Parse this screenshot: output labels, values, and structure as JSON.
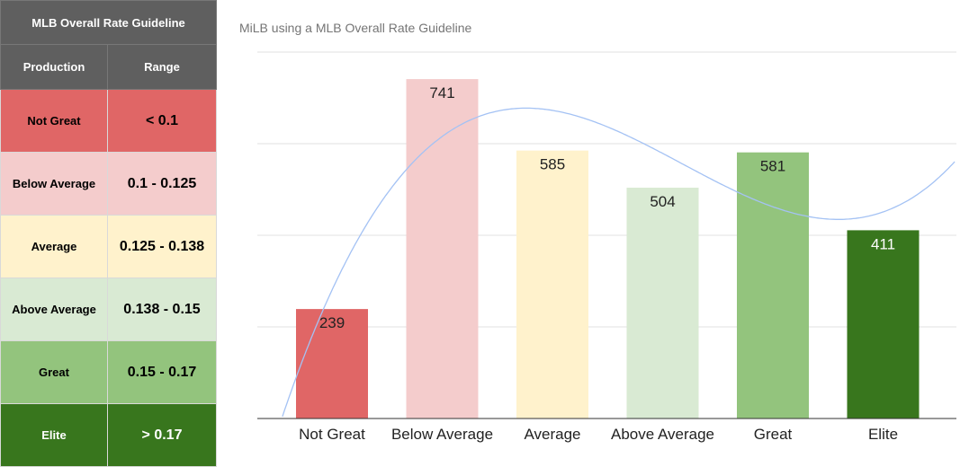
{
  "guide": {
    "title": "MLB Overall Rate Guideline",
    "col_production": "Production",
    "col_range": "Range",
    "rows": [
      {
        "production": "Not Great",
        "range": "< 0.1",
        "bg": "#e06666",
        "fg": "#000000"
      },
      {
        "production": "Below Average",
        "range": "0.1 - 0.125",
        "bg": "#f4cccc",
        "fg": "#000000"
      },
      {
        "production": "Average",
        "range": "0.125 - 0.138",
        "bg": "#fff2cc",
        "fg": "#000000"
      },
      {
        "production": "Above Average",
        "range": "0.138 - 0.15",
        "bg": "#d9ead3",
        "fg": "#000000"
      },
      {
        "production": "Great",
        "range": "0.15 - 0.17",
        "bg": "#93c47d",
        "fg": "#000000"
      },
      {
        "production": "Elite",
        "range": "> 0.17",
        "bg": "#38761d",
        "fg": "#ffffff"
      }
    ]
  },
  "chart_data": {
    "type": "bar",
    "title": "MiLB using a MLB Overall Rate Guideline",
    "categories": [
      "Not Great",
      "Below Average",
      "Average",
      "Above Average",
      "Great",
      "Elite"
    ],
    "values": [
      239,
      741,
      585,
      504,
      581,
      411
    ],
    "colors": [
      "#e06666",
      "#f4cccc",
      "#fff2cc",
      "#d9ead3",
      "#93c47d",
      "#38761d"
    ],
    "label_colors": [
      "#222222",
      "#222222",
      "#222222",
      "#222222",
      "#222222",
      "#ffffff"
    ],
    "ylim": [
      0,
      800
    ],
    "grid": true,
    "trendline": {
      "type": "polynomial",
      "color": "#a4c2f4"
    }
  }
}
